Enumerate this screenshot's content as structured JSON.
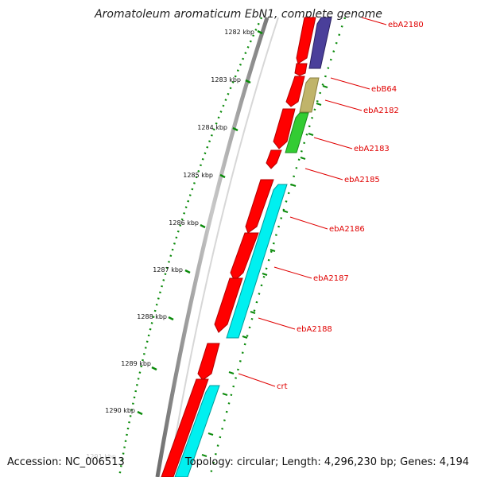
{
  "title": "Aromatoleum aromaticum EbN1, complete genome",
  "footer": {
    "accession": "Accession: NC_006513",
    "summary": "Topology: circular; Length: 4,296,230 bp; Genes: 4,194"
  },
  "colors": {
    "backbone": "#8c8c8c",
    "forward_cds": "#ff0000",
    "reverse_cds_cyan": "#00f0f0",
    "reverse_cds_blue": "#4a3f9a",
    "reverse_cds_olive": "#c0b46a",
    "reverse_cds_green": "#33cc33",
    "tick": "#0a8a0a",
    "label": "#e00000"
  },
  "ruler": {
    "unit": "kbp",
    "labels": [
      "1282 kbp",
      "1283 kbp",
      "1284 kbp",
      "1285 kbp",
      "1286 kbp",
      "1287 kbp",
      "1288 kbp",
      "1289 kbp",
      "1290 kbp",
      "1291 kbp"
    ]
  },
  "genes": [
    "ebA2180",
    "ebB64",
    "ebA2182",
    "ebA2183",
    "ebA2185",
    "ebA2186",
    "ebA2187",
    "ebA2188",
    "crt"
  ]
}
